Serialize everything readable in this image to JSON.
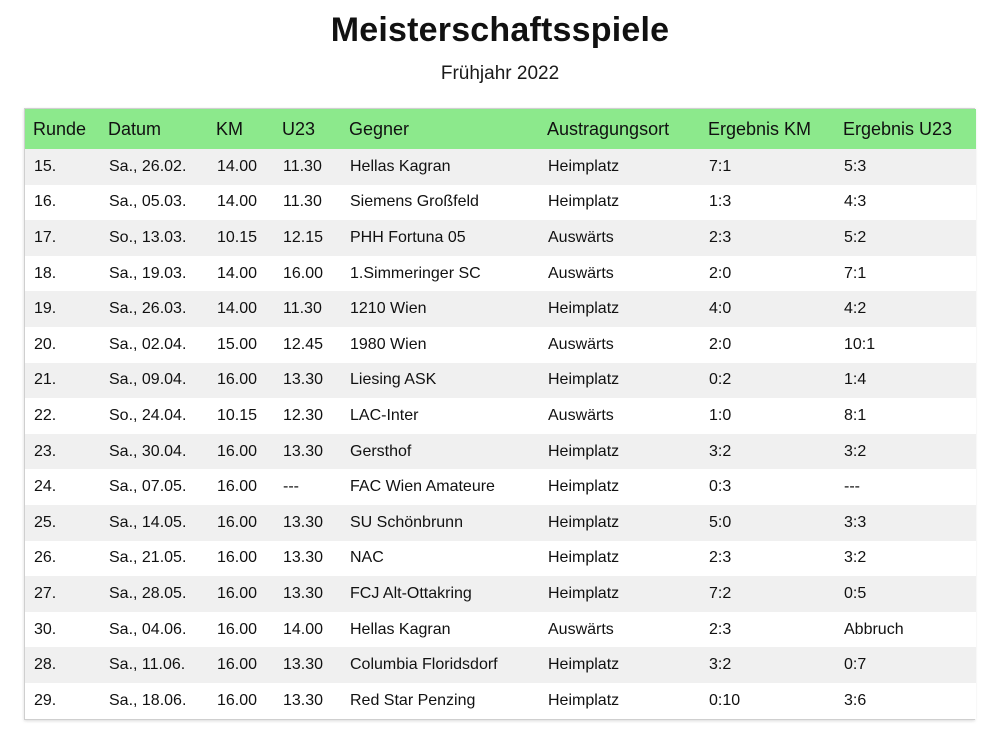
{
  "header": {
    "title": "Meisterschaftsspiele",
    "subtitle": "Frühjahr 2022"
  },
  "colors": {
    "header_bg": "#8ce98c",
    "row_alt_bg": "#f0f0f0"
  },
  "table": {
    "columns": [
      "Runde",
      "Datum",
      "KM",
      "U23",
      "Gegner",
      "Austragungsort",
      "Ergebnis KM",
      "Ergebnis U23"
    ],
    "rows": [
      [
        "15.",
        "Sa., 26.02.",
        "14.00",
        "11.30",
        "Hellas Kagran",
        "Heimplatz",
        "7:1",
        "5:3"
      ],
      [
        "16.",
        "Sa., 05.03.",
        "14.00",
        "11.30",
        "Siemens Großfeld",
        "Heimplatz",
        "1:3",
        "4:3"
      ],
      [
        "17.",
        "So., 13.03.",
        "10.15",
        "12.15",
        "PHH Fortuna 05",
        "Auswärts",
        "2:3",
        "5:2"
      ],
      [
        "18.",
        "Sa., 19.03.",
        "14.00",
        "16.00",
        "1.Simmeringer SC",
        "Auswärts",
        "2:0",
        "7:1"
      ],
      [
        "19.",
        "Sa., 26.03.",
        "14.00",
        "11.30",
        "1210 Wien",
        "Heimplatz",
        "4:0",
        "4:2"
      ],
      [
        "20.",
        "Sa., 02.04.",
        "15.00",
        "12.45",
        "1980 Wien",
        "Auswärts",
        "2:0",
        "10:1"
      ],
      [
        "21.",
        "Sa., 09.04.",
        "16.00",
        "13.30",
        "Liesing ASK",
        "Heimplatz",
        "0:2",
        "1:4"
      ],
      [
        "22.",
        "So., 24.04.",
        "10.15",
        "12.30",
        "LAC-Inter",
        "Auswärts",
        "1:0",
        "8:1"
      ],
      [
        "23.",
        "Sa., 30.04.",
        "16.00",
        "13.30",
        "Gersthof",
        "Heimplatz",
        "3:2",
        "3:2"
      ],
      [
        "24.",
        "Sa., 07.05.",
        "16.00",
        "---",
        "FAC Wien Amateure",
        "Heimplatz",
        "0:3",
        "---"
      ],
      [
        "25.",
        "Sa., 14.05.",
        "16.00",
        "13.30",
        "SU Schönbrunn",
        "Heimplatz",
        "5:0",
        "3:3"
      ],
      [
        "26.",
        "Sa., 21.05.",
        "16.00",
        "13.30",
        "NAC",
        "Heimplatz",
        "2:3",
        "3:2"
      ],
      [
        "27.",
        "Sa., 28.05.",
        "16.00",
        "13.30",
        "FCJ Alt-Ottakring",
        "Heimplatz",
        "7:2",
        "0:5"
      ],
      [
        "30.",
        "Sa., 04.06.",
        "16.00",
        "14.00",
        "Hellas Kagran",
        "Auswärts",
        "2:3",
        "Abbruch"
      ],
      [
        "28.",
        "Sa., 11.06.",
        "16.00",
        "13.30",
        "Columbia Floridsdorf",
        "Heimplatz",
        "3:2",
        "0:7"
      ],
      [
        "29.",
        "Sa., 18.06.",
        "16.00",
        "13.30",
        "Red Star Penzing",
        "Heimplatz",
        "0:10",
        "3:6"
      ]
    ]
  }
}
